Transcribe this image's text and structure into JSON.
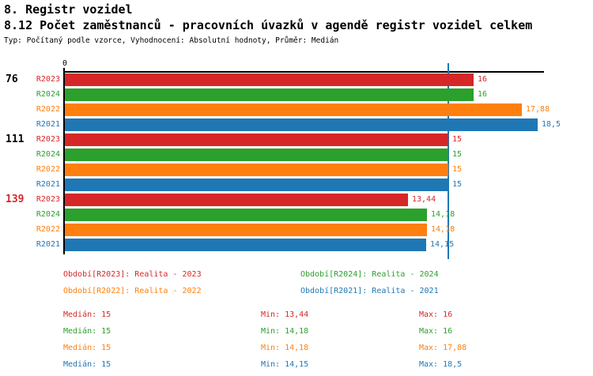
{
  "header": {
    "title": "8. Registr vozidel",
    "subtitle": "8.12 Počet zaměstnanců - pracovních úvazků v agendě registr vozidel celkem",
    "meta": "Typ: Počítaný podle vzorce, Vyhodnocení: Absolutní hodnoty, Průměr: Medián"
  },
  "chart_data": {
    "type": "bar",
    "orientation": "horizontal",
    "title": "8.12 Počet zaměstnanců - pracovních úvazků v agendě registr vozidel celkem",
    "xlim": [
      0,
      18.75
    ],
    "origin_tick_label": "0",
    "grid": "off",
    "median_line_value": 15,
    "median_line_color": "#1f77b4",
    "series_colors": {
      "R2023": "#d62728",
      "R2024": "#2ca02c",
      "R2022": "#ff7f0e",
      "R2021": "#1f77b4"
    },
    "groups": [
      {
        "label": "76",
        "label_color": "#000000",
        "bars": [
          {
            "series": "R2023",
            "value": 16,
            "display": "16"
          },
          {
            "series": "R2024",
            "value": 16,
            "display": "16"
          },
          {
            "series": "R2022",
            "value": 17.88,
            "display": "17,88"
          },
          {
            "series": "R2021",
            "value": 18.5,
            "display": "18,5"
          }
        ]
      },
      {
        "label": "111",
        "label_color": "#000000",
        "bars": [
          {
            "series": "R2023",
            "value": 15,
            "display": "15"
          },
          {
            "series": "R2024",
            "value": 15,
            "display": "15"
          },
          {
            "series": "R2022",
            "value": 15,
            "display": "15"
          },
          {
            "series": "R2021",
            "value": 15,
            "display": "15"
          }
        ]
      },
      {
        "label": "139",
        "label_color": "#d62728",
        "bars": [
          {
            "series": "R2023",
            "value": 13.44,
            "display": "13,44"
          },
          {
            "series": "R2024",
            "value": 14.18,
            "display": "14,18"
          },
          {
            "series": "R2022",
            "value": 14.18,
            "display": "14,18"
          },
          {
            "series": "R2021",
            "value": 14.15,
            "display": "14,15"
          }
        ]
      }
    ]
  },
  "legend": [
    {
      "label": "Období[R2023]: Realita - 2023",
      "color": "#d62728",
      "col": 0,
      "row": 0
    },
    {
      "label": "Období[R2024]: Realita - 2024",
      "color": "#2ca02c",
      "col": 1,
      "row": 0
    },
    {
      "label": "Období[R2022]: Realita - 2022",
      "color": "#ff7f0e",
      "col": 0,
      "row": 1
    },
    {
      "label": "Období[R2021]: Realita - 2021",
      "color": "#1f77b4",
      "col": 1,
      "row": 1
    }
  ],
  "stats": [
    {
      "color": "#d62728",
      "median": "Medián: 15",
      "min": "Min: 13,44",
      "max": "Max: 16"
    },
    {
      "color": "#2ca02c",
      "median": "Medián: 15",
      "min": "Min: 14,18",
      "max": "Max: 16"
    },
    {
      "color": "#ff7f0e",
      "median": "Medián: 15",
      "min": "Min: 14,18",
      "max": "Max: 17,88"
    },
    {
      "color": "#1f77b4",
      "median": "Medián: 15",
      "min": "Min: 14,15",
      "max": "Max: 18,5"
    }
  ]
}
